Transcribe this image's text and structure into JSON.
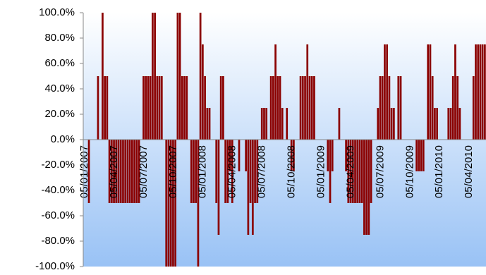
{
  "chart_data": {
    "type": "bar",
    "categories": [
      "05/01/2007",
      null,
      null,
      null,
      null,
      null,
      null,
      null,
      null,
      null,
      null,
      null,
      null,
      "05/04/2007",
      null,
      null,
      null,
      null,
      null,
      null,
      null,
      null,
      null,
      null,
      null,
      null,
      "05/07/2007",
      null,
      null,
      null,
      null,
      null,
      null,
      null,
      null,
      null,
      null,
      null,
      null,
      "05/10/2007",
      null,
      null,
      null,
      null,
      null,
      null,
      null,
      null,
      null,
      null,
      null,
      null,
      "05/01/2008",
      null,
      null,
      null,
      null,
      null,
      null,
      null,
      null,
      null,
      null,
      null,
      null,
      "05/04/2008",
      null,
      null,
      null,
      null,
      null,
      null,
      null,
      null,
      null,
      null,
      null,
      null,
      "05/07/2008",
      null,
      null,
      null,
      null,
      null,
      null,
      null,
      null,
      null,
      null,
      null,
      null,
      "05/10/2008",
      null,
      null,
      null,
      null,
      null,
      null,
      null,
      null,
      null,
      null,
      null,
      null,
      "05/01/2009",
      null,
      null,
      null,
      null,
      null,
      null,
      null,
      null,
      null,
      null,
      null,
      null,
      "05/04/2009",
      null,
      null,
      null,
      null,
      null,
      null,
      null,
      null,
      null,
      null,
      null,
      null,
      "05/07/2009",
      null,
      null,
      null,
      null,
      null,
      null,
      null,
      null,
      null,
      null,
      null,
      null,
      "05/10/2009",
      null,
      null,
      null,
      null,
      null,
      null,
      null,
      null,
      null,
      null,
      null,
      null,
      "05/01/2010",
      null,
      null,
      null,
      null,
      null,
      null,
      null,
      null,
      null,
      null,
      null,
      null,
      "05/04/2010",
      null,
      null,
      null,
      null,
      null,
      null,
      null
    ],
    "values": [
      0,
      0,
      -50,
      0,
      0,
      0,
      50,
      0,
      100,
      50,
      50,
      -50,
      -50,
      -50,
      -50,
      -50,
      -50,
      -50,
      -50,
      -50,
      -50,
      -50,
      -50,
      -50,
      -50,
      0,
      50,
      50,
      50,
      50,
      100,
      100,
      50,
      50,
      50,
      0,
      -100,
      -100,
      -100,
      -100,
      -100,
      100,
      100,
      50,
      50,
      50,
      0,
      -50,
      -50,
      -50,
      -100,
      100,
      75,
      50,
      25,
      25,
      0,
      0,
      -50,
      -75,
      50,
      50,
      -50,
      -50,
      -25,
      -50,
      0,
      0,
      -25,
      0,
      0,
      -25,
      -75,
      -50,
      -75,
      -50,
      -50,
      0,
      25,
      25,
      25,
      0,
      50,
      50,
      75,
      50,
      50,
      25,
      0,
      25,
      0,
      -25,
      -25,
      0,
      0,
      50,
      50,
      50,
      75,
      50,
      50,
      50,
      0,
      0,
      0,
      0,
      0,
      -25,
      -50,
      -25,
      0,
      0,
      25,
      0,
      0,
      -25,
      -50,
      -50,
      -50,
      -50,
      -50,
      -50,
      -50,
      -75,
      -75,
      -75,
      -50,
      0,
      0,
      25,
      50,
      50,
      75,
      75,
      50,
      25,
      25,
      0,
      50,
      50,
      0,
      0,
      0,
      0,
      0,
      0,
      -25,
      -25,
      -25,
      -25,
      0,
      75,
      75,
      50,
      25,
      25,
      0,
      0,
      0,
      0,
      25,
      25,
      50,
      75,
      50,
      25,
      0,
      0,
      0,
      0,
      0,
      50,
      75,
      75,
      75,
      75,
      75
    ],
    "color": "#8b0000",
    "ylim": [
      -100,
      100
    ],
    "yticks": [
      {
        "value": -100,
        "label": "-100.0%"
      },
      {
        "value": -80,
        "label": "-80.0%"
      },
      {
        "value": -60,
        "label": "-60.0%"
      },
      {
        "value": -40,
        "label": "-40.0%"
      },
      {
        "value": -20,
        "label": "-20.0%"
      },
      {
        "value": 0,
        "label": "0.0%"
      },
      {
        "value": 20,
        "label": "20.0%"
      },
      {
        "value": 40,
        "label": "40.0%"
      },
      {
        "value": 60,
        "label": "60.0%"
      },
      {
        "value": 80,
        "label": "80.0%"
      },
      {
        "value": 100,
        "label": "100.0%"
      }
    ]
  }
}
